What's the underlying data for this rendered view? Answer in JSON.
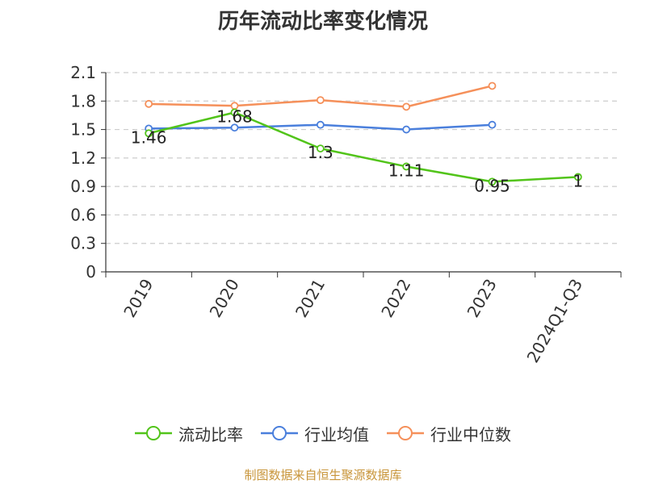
{
  "chart_data": {
    "type": "line",
    "title": "历年流动比率变化情况",
    "categories": [
      "2019",
      "2020",
      "2021",
      "2022",
      "2023",
      "2024Q1-Q3"
    ],
    "series": [
      {
        "name": "流动比率",
        "color": "#52c41a",
        "values": [
          1.46,
          1.68,
          1.3,
          1.11,
          0.95,
          1
        ],
        "show_labels": true
      },
      {
        "name": "行业均值",
        "color": "#4a7fdc",
        "values": [
          1.51,
          1.52,
          1.55,
          1.5,
          1.55,
          null
        ],
        "show_labels": false
      },
      {
        "name": "行业中位数",
        "color": "#f5905a",
        "values": [
          1.77,
          1.75,
          1.81,
          1.74,
          1.96,
          null
        ],
        "show_labels": false
      }
    ],
    "value_labels": [
      "1.46",
      "1.68",
      "1.3",
      "1.11",
      "0.95",
      "1"
    ],
    "y_ticks": [
      "0",
      "0.3",
      "0.6",
      "0.9",
      "1.2",
      "1.5",
      "1.8",
      "2.1"
    ],
    "ylim": [
      0,
      2.1
    ],
    "grid": "horizontal-dashed",
    "legend_position": "bottom"
  },
  "source_note": "制图数据来自恒生聚源数据库"
}
